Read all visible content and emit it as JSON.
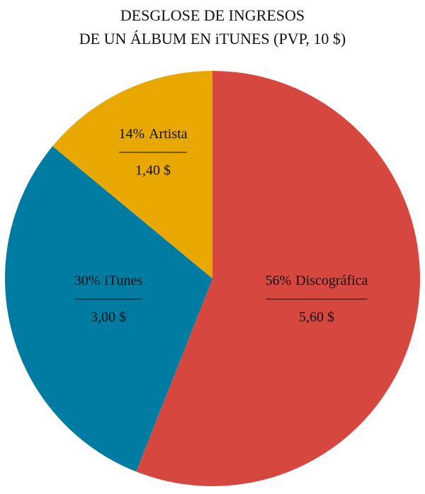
{
  "chart_data": {
    "type": "pie",
    "title": [
      "DESGLOSE DE INGRESOS",
      "DE UN ÁLBUM EN iTUNES (PVP, 10 $)"
    ],
    "categories": [
      "Discográfica",
      "iTunes",
      "Artista"
    ],
    "values": [
      56,
      30,
      14
    ],
    "value_labels": [
      "56%",
      "30%",
      "14%"
    ],
    "amounts": [
      5.6,
      3.0,
      1.4
    ],
    "amount_labels": [
      "5,60 $",
      "3,00 $",
      "1,40 $"
    ],
    "colors": [
      "#d5473f",
      "#007ba1",
      "#e9a800"
    ]
  }
}
